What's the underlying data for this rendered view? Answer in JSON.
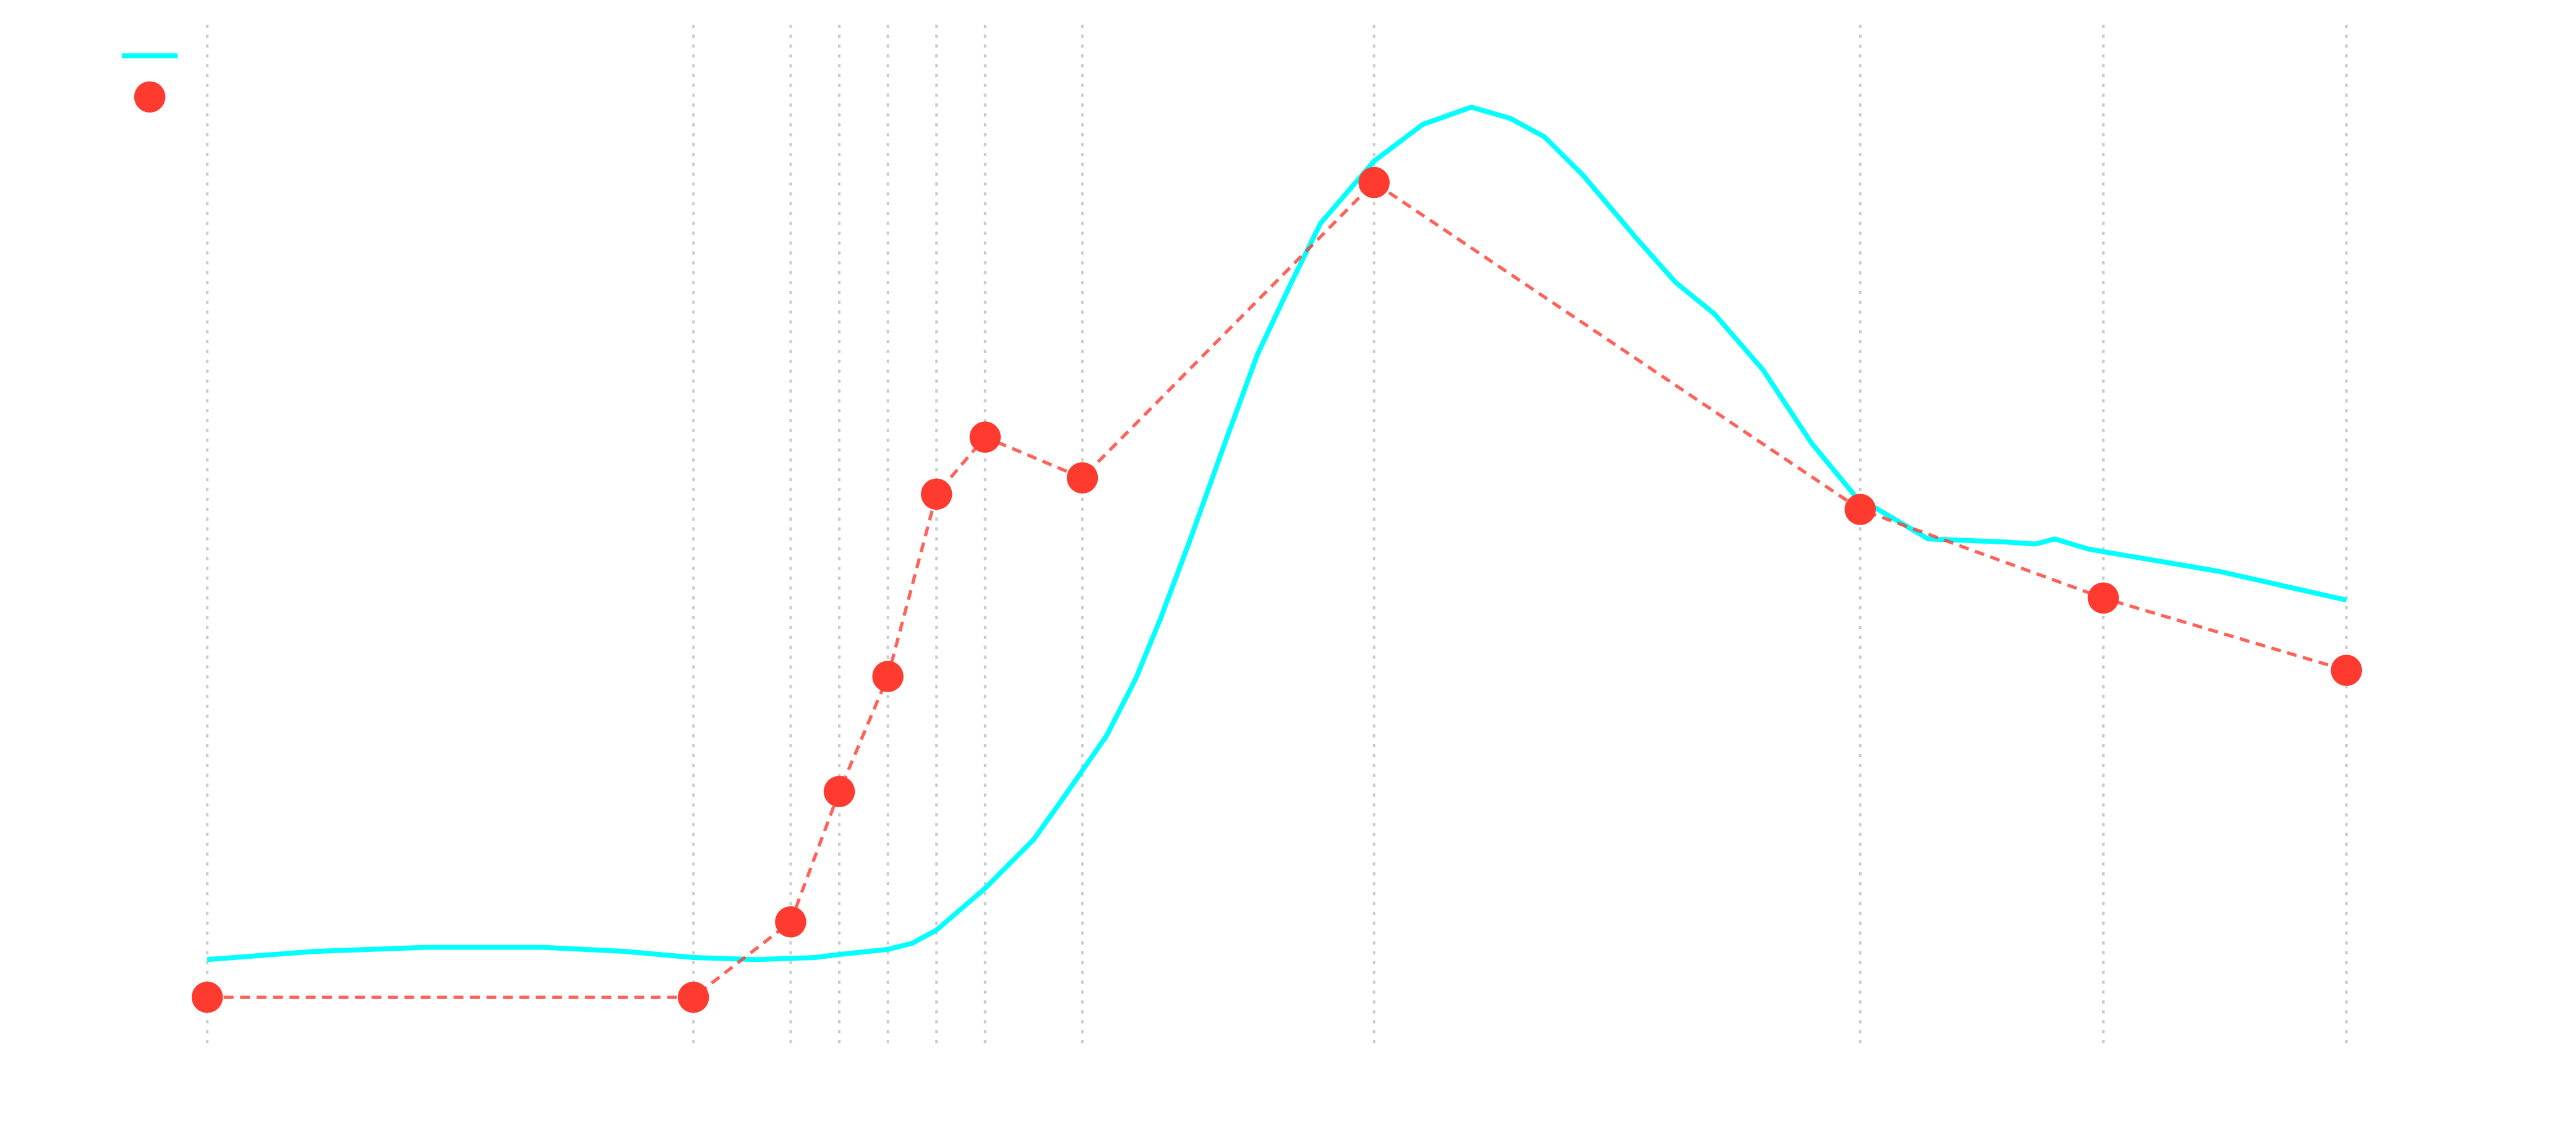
{
  "chart_data": {
    "type": "line",
    "xlim": [
      -2,
      46
    ],
    "ylim": [
      0,
      100
    ],
    "xticks": [
      0,
      10,
      12,
      13,
      14,
      15,
      16,
      18,
      24,
      34,
      39,
      44
    ],
    "grid": true,
    "legend": "upper left",
    "series": [
      {
        "color": "#00ffff",
        "linestyle": "solid",
        "marker": false,
        "x": [
          0,
          2.2,
          4.5,
          6.9,
          8.6,
          10,
          11.3,
          12.5,
          13,
          14,
          14.5,
          15,
          16,
          17,
          17.7,
          18.5,
          19.1,
          19.6,
          20.2,
          20.9,
          21.6,
          22.3,
          22.9,
          24,
          25,
          26,
          26.8,
          27.5,
          28.3,
          29.4,
          30.2,
          31,
          32,
          33,
          33.9,
          35.4,
          37,
          37.6,
          38,
          38.7,
          41.4,
          44
        ],
        "values": [
          8.2,
          9.0,
          9.4,
          9.4,
          9.0,
          8.4,
          8.2,
          8.4,
          8.7,
          9.2,
          9.8,
          11.1,
          15.2,
          20.0,
          24.7,
          30.2,
          35.8,
          41.6,
          49.2,
          58.5,
          67.6,
          74.7,
          80.5,
          86.6,
          90.2,
          91.9,
          90.8,
          89.0,
          85.2,
          79.0,
          74.7,
          71.6,
          66.1,
          58.9,
          53.7,
          49.5,
          49.2,
          49.0,
          49.5,
          48.5,
          46.3,
          43.5
        ]
      },
      {
        "color": "#ff3b2f",
        "linestyle": "dashed",
        "marker": true,
        "x": [
          0,
          10,
          12,
          13,
          14,
          15,
          16,
          18,
          24,
          34,
          39,
          44
        ],
        "values": [
          4.5,
          4.5,
          11.9,
          24.7,
          36.0,
          53.9,
          59.5,
          55.5,
          84.5,
          52.4,
          43.7,
          36.6
        ]
      }
    ]
  }
}
